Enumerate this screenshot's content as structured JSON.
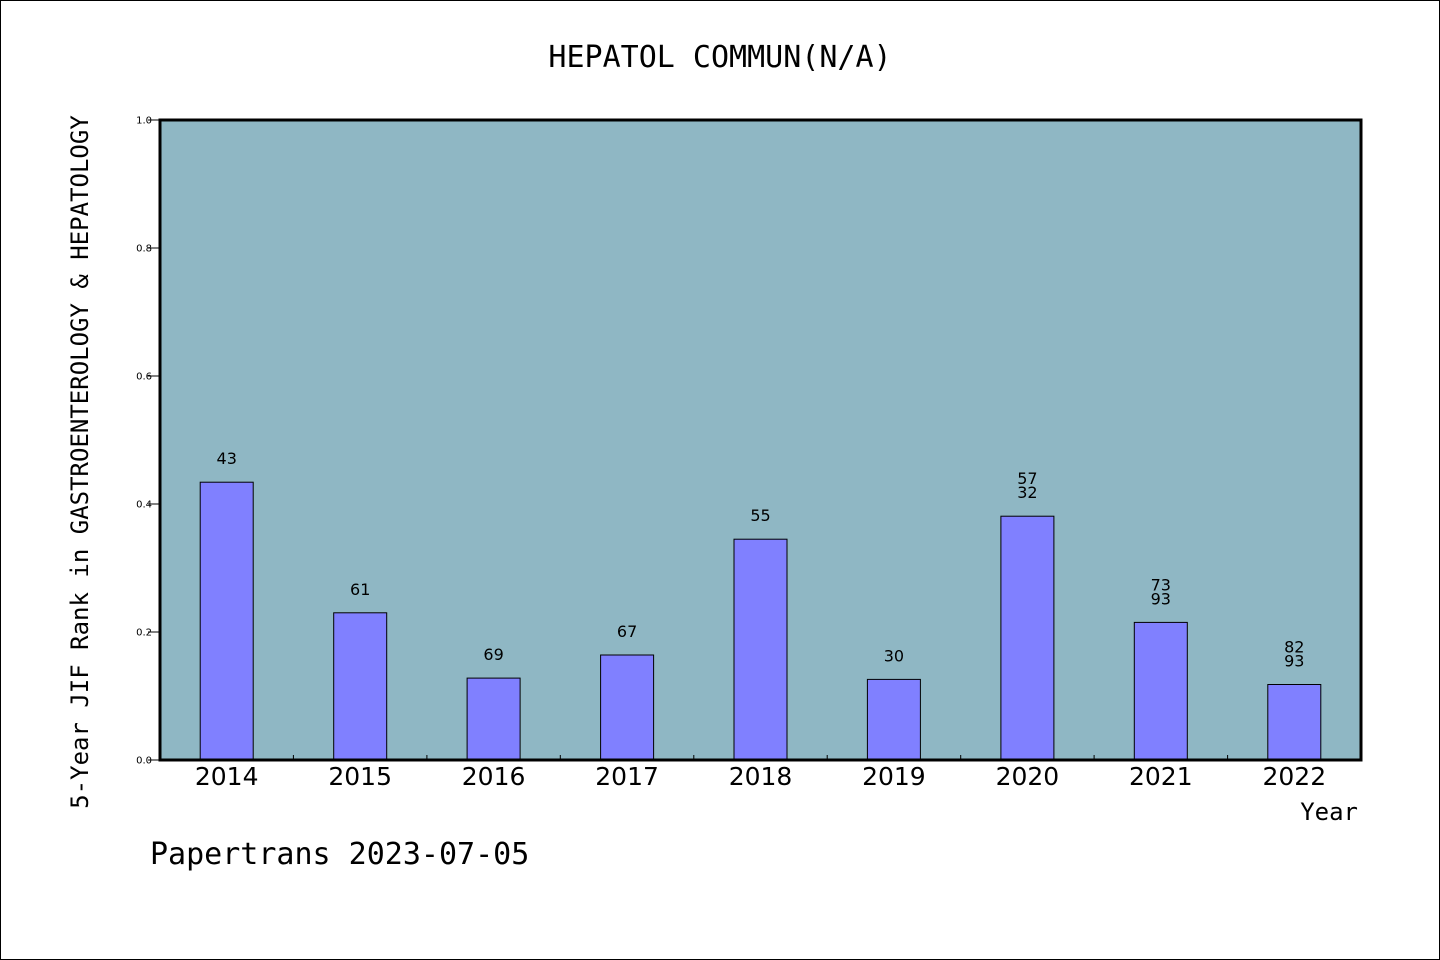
{
  "chart_data": {
    "type": "bar",
    "title": "HEPATOL COMMUN(N/A)",
    "xlabel": "Year",
    "ylabel": "5-Year JIF Rank in GASTROENTEROLOGY & HEPATOLOGY",
    "ylim": [
      0,
      1.0
    ],
    "yticks": [
      "0.0",
      "0.2",
      "0.4",
      "0.6",
      "0.8",
      "1.0"
    ],
    "categories": [
      "2014",
      "2015",
      "2016",
      "2017",
      "2018",
      "2019",
      "2020",
      "2021",
      "2022"
    ],
    "values": [
      0.434,
      0.23,
      0.128,
      0.164,
      0.345,
      0.126,
      0.381,
      0.215,
      0.118
    ],
    "labels": [
      [
        "43"
      ],
      [
        "61"
      ],
      [
        "69"
      ],
      [
        "67"
      ],
      [
        "55"
      ],
      [
        "30"
      ],
      [
        "57",
        "32"
      ],
      [
        "73",
        "93"
      ],
      [
        "82",
        "93"
      ]
    ],
    "grid": false,
    "colors": {
      "plot_background": "#8fb7c4",
      "bar_fill": "#8080ff",
      "bar_stroke": "#000000"
    }
  },
  "footer": {
    "text": "Papertrans 2023-07-05"
  }
}
